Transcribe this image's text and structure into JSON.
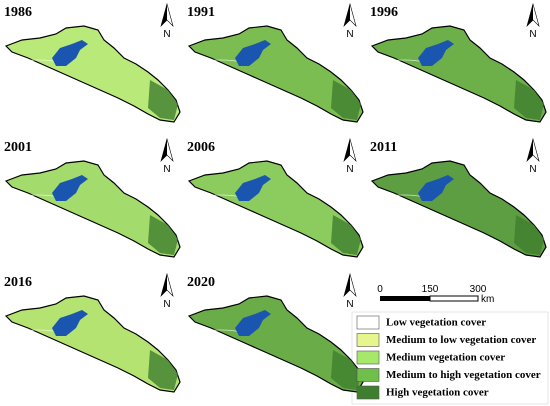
{
  "panels": [
    {
      "year": "1986",
      "north": "N"
    },
    {
      "year": "1991",
      "north": "N"
    },
    {
      "year": "1996",
      "north": "N"
    },
    {
      "year": "2001",
      "north": "N"
    },
    {
      "year": "2006",
      "north": "N"
    },
    {
      "year": "2011",
      "north": "N"
    },
    {
      "year": "2016",
      "north": "N"
    },
    {
      "year": "2020",
      "north": "N"
    }
  ],
  "scale_bar": {
    "ticks": [
      0,
      150,
      300
    ],
    "unit": "km"
  },
  "legend": {
    "items": [
      {
        "label": "Low vegetation cover",
        "color": "#ffffff"
      },
      {
        "label": "Medium to low vegetation cover",
        "color": "#e6f58c"
      },
      {
        "label": "Medium vegetation cover",
        "color": "#a6e86a"
      },
      {
        "label": "Medium to high vegetation cover",
        "color": "#6fbf4a"
      },
      {
        "label": "High vegetation cover",
        "color": "#3f7e2e"
      }
    ]
  }
}
